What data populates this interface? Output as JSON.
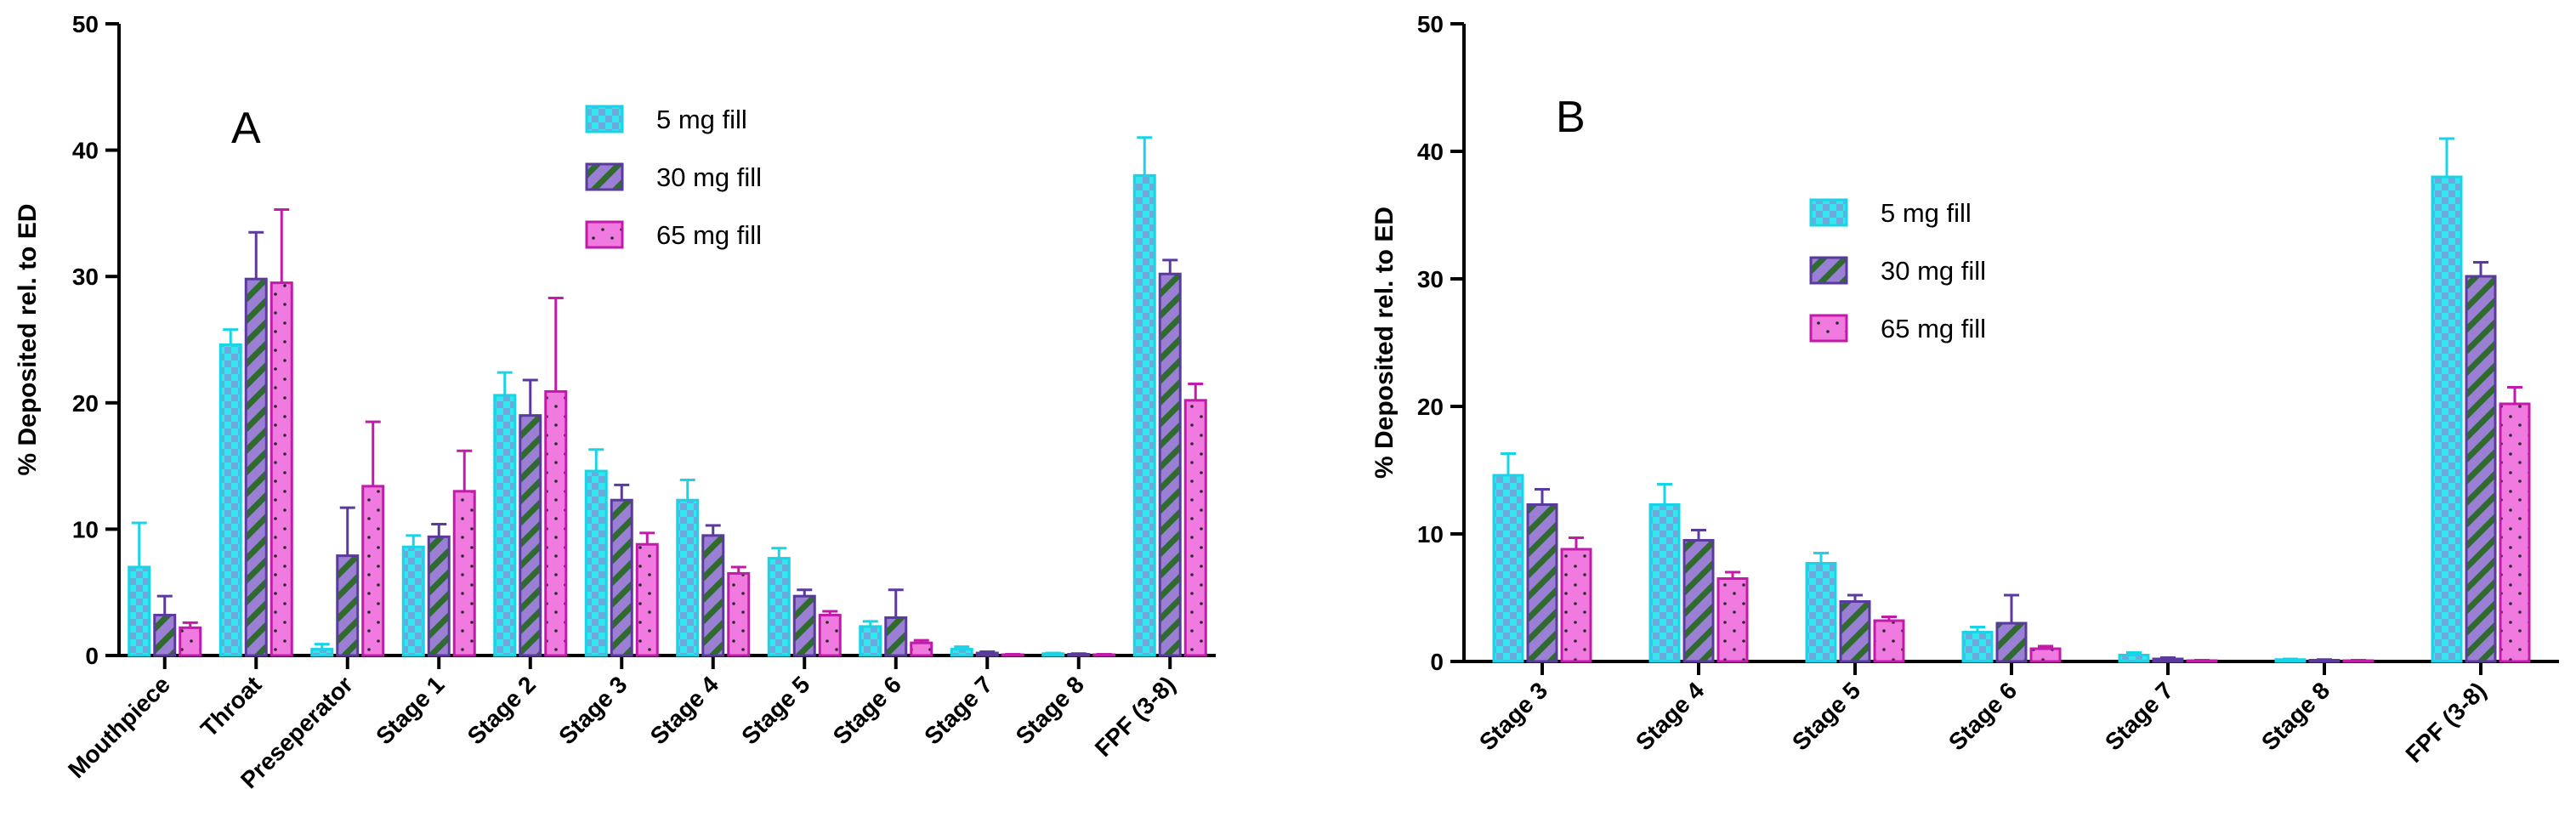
{
  "chart_data": [
    {
      "type": "bar",
      "panel_label": "A",
      "ylabel": "% Deposited rel. to ED",
      "ylim": [
        0,
        50
      ],
      "yticks": [
        "0",
        "10",
        "20",
        "30",
        "40",
        "50"
      ],
      "legend_position": "top-center",
      "categories": [
        "Mouthpiece",
        "Throat",
        "Preseperator",
        "Stage 1",
        "Stage 2",
        "Stage 3",
        "Stage 4",
        "Stage 5",
        "Stage 6",
        "Stage 7",
        "Stage 8",
        "FPF (3-8)"
      ],
      "series": [
        {
          "name": "5 mg fill",
          "color": "#33e6f0",
          "pattern": "squares",
          "values": [
            7.0,
            24.6,
            0.5,
            8.6,
            20.6,
            14.6,
            12.3,
            7.7,
            2.3,
            0.5,
            0.15,
            38.0
          ],
          "errors": [
            3.5,
            1.2,
            0.4,
            0.9,
            1.8,
            1.7,
            1.6,
            0.8,
            0.4,
            0.2,
            0.05,
            3.0
          ]
        },
        {
          "name": "30 mg fill",
          "color": "#9b7fd4",
          "pattern": "stripes",
          "values": [
            3.2,
            29.8,
            7.9,
            9.4,
            19.0,
            12.3,
            9.5,
            4.7,
            3.0,
            0.2,
            0.1,
            30.2
          ],
          "errors": [
            1.5,
            3.7,
            3.8,
            1.0,
            2.8,
            1.2,
            0.8,
            0.5,
            2.2,
            0.1,
            0.05,
            1.1
          ]
        },
        {
          "name": "65 mg fill",
          "color": "#f07ae0",
          "pattern": "dots",
          "values": [
            2.2,
            29.5,
            13.4,
            13.0,
            20.9,
            8.8,
            6.5,
            3.2,
            1.0,
            0.05,
            0.05,
            20.2
          ],
          "errors": [
            0.4,
            5.8,
            5.1,
            3.2,
            7.4,
            0.9,
            0.5,
            0.3,
            0.2,
            0.05,
            0.05,
            1.3
          ]
        }
      ]
    },
    {
      "type": "bar",
      "panel_label": "B",
      "ylabel": "% Deposited rel. to ED",
      "ylim": [
        0,
        50
      ],
      "yticks": [
        "0",
        "10",
        "20",
        "30",
        "40",
        "50"
      ],
      "legend_position": "top-center",
      "categories": [
        "Stage 3",
        "Stage 4",
        "Stage 5",
        "Stage 6",
        "Stage 7",
        "Stage 8",
        "FPF (3-8)"
      ],
      "series": [
        {
          "name": "5 mg fill",
          "color": "#33e6f0",
          "pattern": "squares",
          "values": [
            14.6,
            12.3,
            7.7,
            2.3,
            0.5,
            0.15,
            38.0
          ],
          "errors": [
            1.7,
            1.6,
            0.8,
            0.4,
            0.2,
            0.05,
            3.0
          ]
        },
        {
          "name": "30 mg fill",
          "color": "#9b7fd4",
          "pattern": "stripes",
          "values": [
            12.3,
            9.5,
            4.7,
            3.0,
            0.2,
            0.1,
            30.2
          ],
          "errors": [
            1.2,
            0.8,
            0.5,
            2.2,
            0.1,
            0.05,
            1.1
          ]
        },
        {
          "name": "65 mg fill",
          "color": "#f07ae0",
          "pattern": "dots",
          "values": [
            8.8,
            6.5,
            3.2,
            1.0,
            0.05,
            0.05,
            20.2
          ],
          "errors": [
            0.9,
            0.5,
            0.3,
            0.2,
            0.05,
            0.05,
            1.3
          ]
        }
      ]
    }
  ]
}
